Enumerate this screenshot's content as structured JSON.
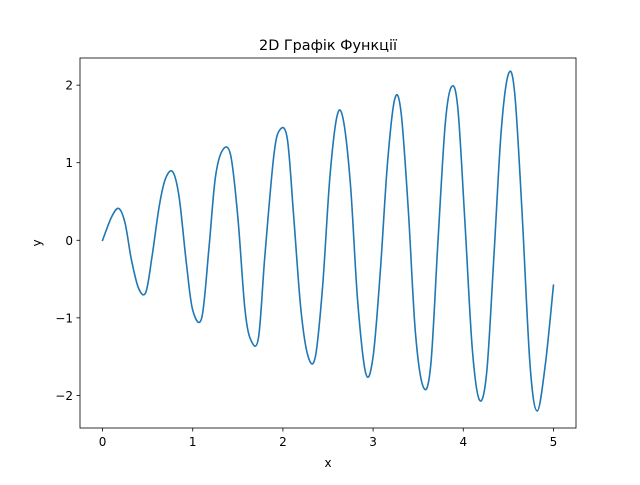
{
  "chart_data": {
    "type": "line",
    "title": "2D Графік Функції",
    "xlabel": "x",
    "ylabel": "y",
    "xlim": [
      -0.25,
      5.25
    ],
    "ylim": [
      -2.42,
      2.35
    ],
    "xticks": [
      {
        "value": 0,
        "label": "0"
      },
      {
        "value": 1,
        "label": "1"
      },
      {
        "value": 2,
        "label": "2"
      },
      {
        "value": 3,
        "label": "3"
      },
      {
        "value": 4,
        "label": "4"
      },
      {
        "value": 5,
        "label": "5"
      }
    ],
    "yticks": [
      {
        "value": -2,
        "label": "−2"
      },
      {
        "value": -1,
        "label": "−1"
      },
      {
        "value": 0,
        "label": "0"
      },
      {
        "value": 1,
        "label": "1"
      },
      {
        "value": 2,
        "label": "2"
      }
    ],
    "grid": false,
    "series_color": "#1f77b4",
    "series": [
      {
        "x": [
          0,
          0.1,
          0.18,
          0.25,
          0.32,
          0.4,
          0.48,
          0.55,
          0.63,
          0.7,
          0.78,
          0.85,
          0.93,
          1.0,
          1.1,
          1.18,
          1.25,
          1.33,
          1.42,
          1.5,
          1.58,
          1.65,
          1.73,
          1.8,
          1.9,
          1.97,
          2.05,
          2.12,
          2.2,
          2.28,
          2.36,
          2.44,
          2.52,
          2.6,
          2.67,
          2.75,
          2.83,
          2.92,
          3.0,
          3.08,
          3.16,
          3.24,
          3.31,
          3.39,
          3.47,
          3.56,
          3.64,
          3.72,
          3.8,
          3.87,
          3.94,
          4.02,
          4.1,
          4.18,
          4.26,
          4.34,
          4.42,
          4.5,
          4.57,
          4.65,
          4.74,
          4.82,
          4.91,
          5.0
        ],
        "y": [
          0.0,
          0.3,
          0.41,
          0.22,
          -0.25,
          -0.62,
          -0.67,
          -0.2,
          0.45,
          0.8,
          0.88,
          0.55,
          -0.3,
          -0.9,
          -1.0,
          -0.1,
          0.8,
          1.16,
          1.1,
          0.3,
          -0.9,
          -1.3,
          -1.25,
          -0.2,
          1.1,
          1.43,
          1.3,
          0.3,
          -0.9,
          -1.5,
          -1.5,
          -0.6,
          0.8,
          1.6,
          1.55,
          0.7,
          -0.8,
          -1.72,
          -1.5,
          -0.4,
          1.0,
          1.82,
          1.65,
          0.4,
          -1.2,
          -1.9,
          -1.6,
          0.0,
          1.5,
          1.98,
          1.7,
          0.2,
          -1.4,
          -2.06,
          -1.7,
          -0.2,
          1.4,
          2.14,
          1.9,
          0.4,
          -1.6,
          -2.2,
          -1.6,
          -0.58
        ]
      }
    ]
  }
}
